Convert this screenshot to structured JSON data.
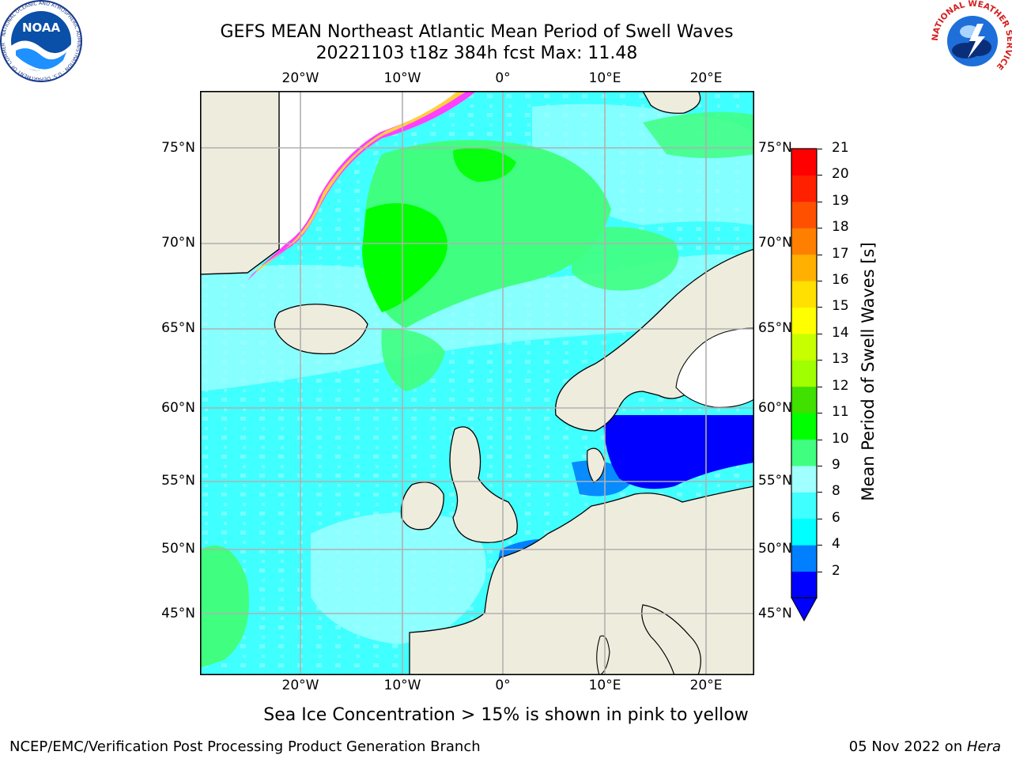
{
  "title": {
    "line1": "GEFS MEAN Northeast Atlantic Mean Period of Swell Waves",
    "line2": "20221103 t18z 384h fcst   Max: 11.48"
  },
  "map": {
    "lon_ticks": [
      "20°W",
      "10°W",
      "0°",
      "10°E",
      "20°E"
    ],
    "lat_ticks": [
      "75°N",
      "70°N",
      "65°N",
      "60°N",
      "55°N",
      "50°N",
      "45°N"
    ],
    "land_color": "#eeecdd",
    "grid_color": "#b0b0b0"
  },
  "colorbar": {
    "label": "Mean Period of Swell Waves [s]",
    "ticks": [
      "21",
      "20",
      "19",
      "18",
      "17",
      "16",
      "15",
      "14",
      "13",
      "12",
      "11",
      "10",
      "9",
      "8",
      "6",
      "4",
      "2"
    ],
    "colors": [
      "#0000ff",
      "#0080ff",
      "#00ffff",
      "#40ffff",
      "#a0ffff",
      "#40ff80",
      "#00ff00",
      "#40e000",
      "#a0ff00",
      "#c8ff00",
      "#ffff00",
      "#ffe000",
      "#ffb000",
      "#ff8000",
      "#ff5000",
      "#ff2000",
      "#ff0000"
    ]
  },
  "note": "Sea Ice Concentration > 15% is shown in pink to yellow",
  "footer": {
    "left": "NCEP/EMC/Verification Post Processing Product Generation Branch",
    "right_date": "05 Nov 2022 on ",
    "right_machine": "Hera"
  },
  "logos": {
    "noaa_text": "NOAA",
    "noaa_ring": "NATIONAL OCEANIC AND ATMOSPHERIC ADMINISTRATION · U.S. DEPARTMENT OF COMMERCE",
    "nws_ring": "NATIONAL WEATHER SERVICE"
  }
}
